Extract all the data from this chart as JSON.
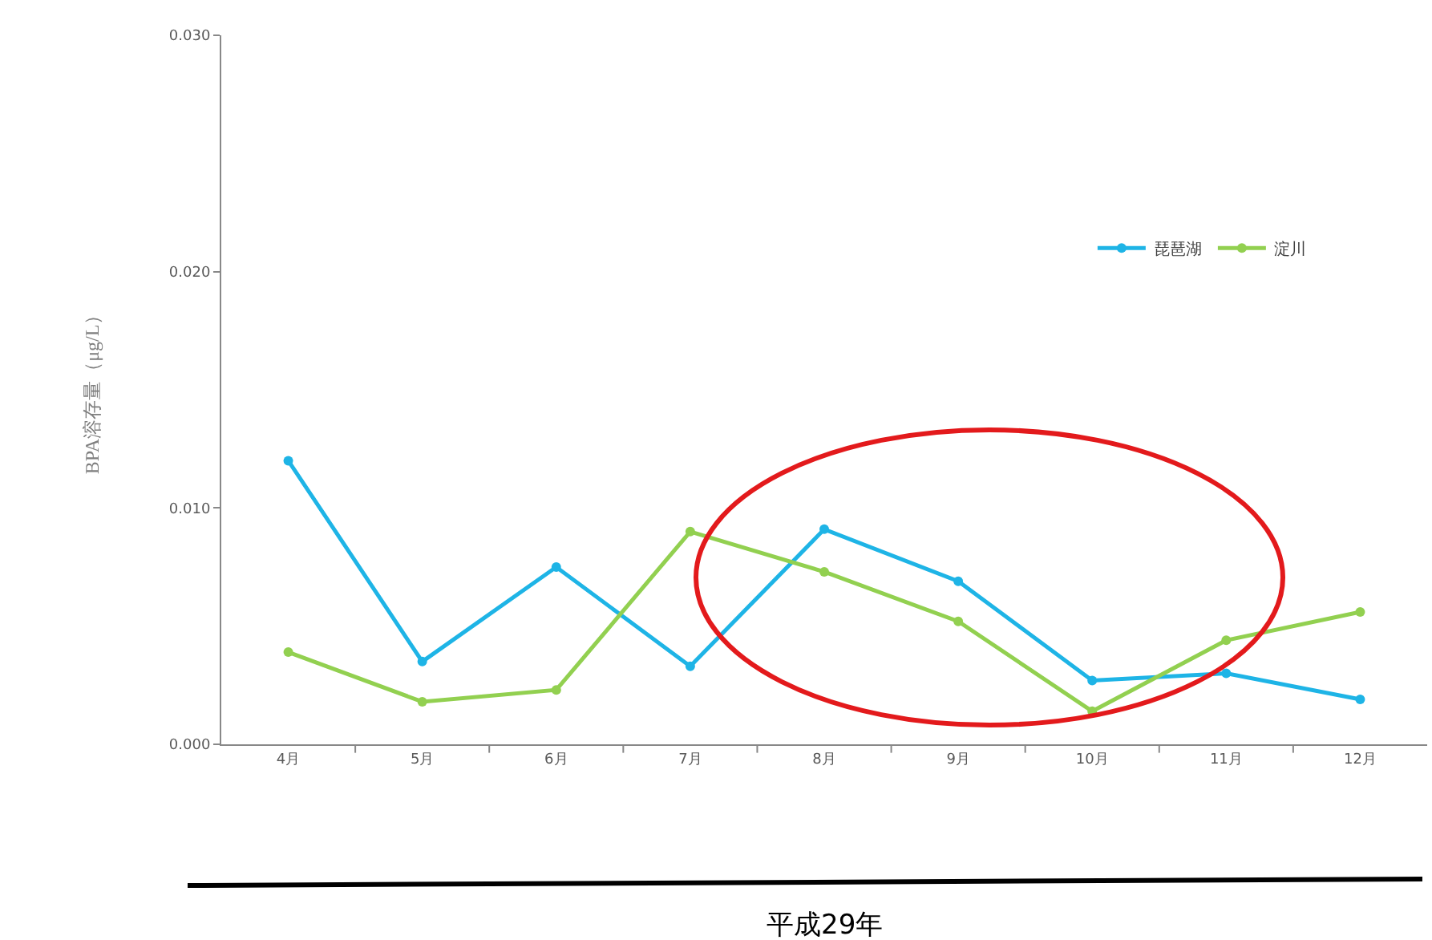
{
  "chart_data": {
    "type": "line",
    "ylabel": "BPA溶存量（μg/L）",
    "annotations": [
      "平成29年"
    ],
    "categories": [
      "4月",
      "5月",
      "6月",
      "7月",
      "8月",
      "9月",
      "10月",
      "11月",
      "12月"
    ],
    "series": [
      {
        "name": "琵琶湖",
        "color": "#1eb4e6",
        "values": [
          0.012,
          0.0035,
          0.0075,
          0.0033,
          0.0091,
          0.0069,
          0.0027,
          0.003,
          0.0019
        ]
      },
      {
        "name": "淀川",
        "color": "#92d050",
        "values": [
          0.0039,
          0.0018,
          0.0023,
          0.009,
          0.0073,
          0.0052,
          0.0014,
          0.0044,
          0.0056
        ]
      }
    ],
    "ylim": [
      0,
      0.03
    ],
    "yticks": [
      {
        "value": 0,
        "label": "0.000"
      },
      {
        "value": 0.01,
        "label": "0.010"
      },
      {
        "value": 0.02,
        "label": "0.020"
      },
      {
        "value": 0.03,
        "label": "0.030"
      }
    ],
    "grid": false,
    "legend": "top right",
    "marker": "circle",
    "line_style": "solid"
  }
}
